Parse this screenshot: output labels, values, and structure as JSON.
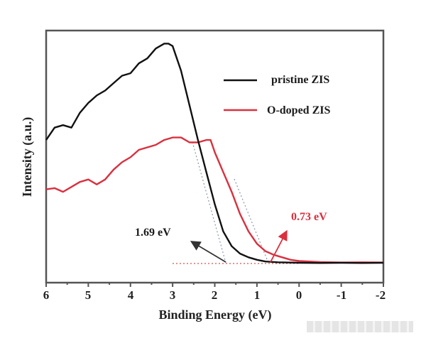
{
  "chart_data": {
    "type": "line",
    "title": "",
    "xlabel": "Binding Energy (eV)",
    "ylabel": "Intensity (a.u.)",
    "xlim": [
      6,
      -2
    ],
    "x_reversed": true,
    "ylim": [
      0,
      100
    ],
    "y_ticks_shown": false,
    "grid": false,
    "x_ticks": [
      6,
      5,
      4,
      3,
      2,
      1,
      0,
      -1,
      -2
    ],
    "x_tick_labels": [
      "6",
      "5",
      "4",
      "3",
      "2",
      "1",
      "0",
      "-1",
      "-2"
    ],
    "legend": {
      "position": "upper right",
      "entries": [
        "pristine ZIS",
        "O-doped ZIS"
      ]
    },
    "series": [
      {
        "name": "pristine ZIS",
        "color": "#111111",
        "x": [
          6.0,
          5.8,
          5.6,
          5.4,
          5.2,
          5.0,
          4.8,
          4.6,
          4.4,
          4.2,
          4.0,
          3.8,
          3.6,
          3.4,
          3.2,
          3.1,
          3.0,
          2.8,
          2.6,
          2.4,
          2.2,
          2.0,
          1.8,
          1.6,
          1.4,
          1.2,
          1.0,
          0.8,
          0.5,
          0.0,
          -0.5,
          -1.0,
          -1.5,
          -2.0
        ],
        "y": [
          50,
          55,
          56,
          55,
          61,
          65,
          68,
          70,
          73,
          76,
          77,
          81,
          83,
          87,
          89,
          89,
          88,
          78,
          64,
          50,
          37,
          24,
          13,
          7,
          4,
          2.5,
          1.5,
          0.8,
          0.5,
          0.3,
          0.2,
          0.3,
          0.2,
          0.3
        ]
      },
      {
        "name": "O-doped ZIS",
        "color": "#d9303f",
        "x": [
          6.0,
          5.8,
          5.6,
          5.4,
          5.2,
          5.0,
          4.8,
          4.6,
          4.4,
          4.2,
          4.0,
          3.8,
          3.6,
          3.4,
          3.2,
          3.0,
          2.8,
          2.6,
          2.4,
          2.2,
          2.1,
          2.0,
          1.8,
          1.6,
          1.4,
          1.2,
          1.0,
          0.8,
          0.6,
          0.4,
          0.2,
          0.0,
          -0.5,
          -1.0,
          -1.5,
          -2.0
        ],
        "y": [
          30,
          30.5,
          29,
          31,
          33,
          34,
          32,
          34,
          38,
          41,
          43,
          46,
          47,
          48,
          50,
          51,
          51,
          49,
          49,
          50,
          50,
          45,
          37,
          29,
          20,
          13,
          8,
          5,
          3.5,
          2.5,
          1.5,
          1,
          0.6,
          0.4,
          0.5,
          0.4
        ]
      }
    ],
    "annotations": [
      {
        "text": "1.69 eV",
        "color": "#1a1a1a",
        "bandgap_eV": 1.69
      },
      {
        "text": "0.73 eV",
        "color": "#d9303f",
        "bandgap_eV": 0.73
      }
    ],
    "tangent_lines": [
      {
        "series": "pristine ZIS",
        "intercept_eV": 1.69,
        "style": "dotted"
      },
      {
        "series": "O-doped ZIS",
        "intercept_eV": 0.73,
        "style": "dotted"
      },
      {
        "baseline": true,
        "from_eV": 3.0,
        "to_eV": 0.0,
        "style": "dotted",
        "color": "#cc4444"
      }
    ]
  },
  "labels": {
    "xlabel": "Binding Energy (eV)",
    "ylabel": "Intensity (a.u.)",
    "legend_1": "pristine ZIS",
    "legend_2": "O-doped ZIS",
    "anno_1": "1.69 eV",
    "anno_2": "0.73 eV",
    "ticks": [
      "6",
      "5",
      "4",
      "3",
      "2",
      "1",
      "0",
      "-1",
      "-2"
    ]
  }
}
